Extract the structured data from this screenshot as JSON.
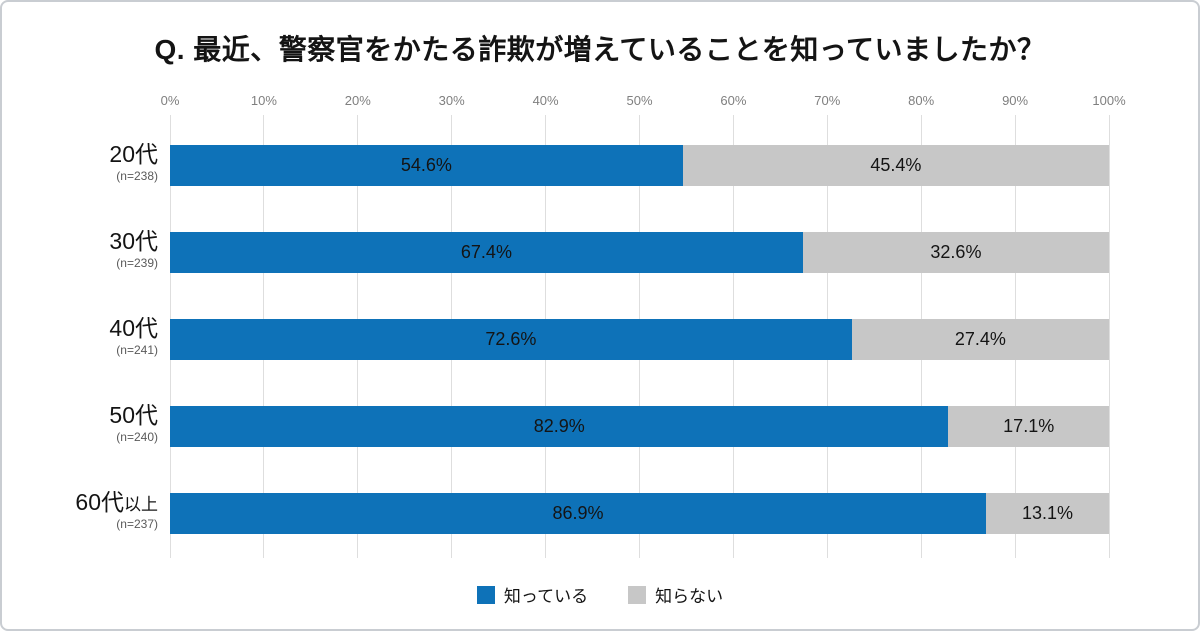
{
  "title": "Q. 最近、警察官をかたる詐欺が増えていることを知っていましたか？",
  "chart_data": {
    "type": "bar",
    "orientation": "horizontal",
    "stacked": true,
    "title": "Q. 最近、警察官をかたる詐欺が増えていることを知っていましたか？",
    "categories": [
      {
        "label": "20代",
        "suffix": "",
        "n": "(n=238)"
      },
      {
        "label": "30代",
        "suffix": "",
        "n": "(n=239)"
      },
      {
        "label": "40代",
        "suffix": "",
        "n": "(n=241)"
      },
      {
        "label": "50代",
        "suffix": "",
        "n": "(n=240)"
      },
      {
        "label": "60代",
        "suffix": "以上",
        "n": "(n=237)"
      }
    ],
    "series": [
      {
        "name": "知っている",
        "color": "#0e72b8",
        "values": [
          54.6,
          67.4,
          72.6,
          82.9,
          86.9
        ]
      },
      {
        "name": "知らない",
        "color": "#c7c7c7",
        "values": [
          45.4,
          32.6,
          27.4,
          17.1,
          13.1
        ]
      }
    ],
    "x_axis": {
      "min": 0,
      "max": 100,
      "ticks": [
        "0%",
        "10%",
        "20%",
        "30%",
        "40%",
        "50%",
        "60%",
        "70%",
        "80%",
        "90%",
        "100%"
      ]
    },
    "value_label_format": "{value}%",
    "legend_position": "bottom",
    "grid": true
  }
}
